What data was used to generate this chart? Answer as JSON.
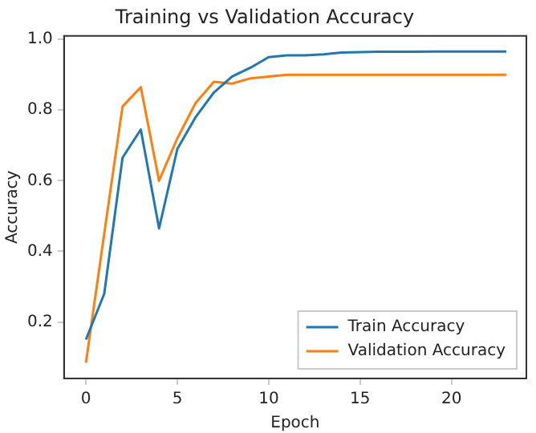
{
  "chart_data": {
    "type": "line",
    "title": "Training vs Validation Accuracy",
    "xlabel": "Epoch",
    "ylabel": "Accuracy",
    "x": [
      0,
      1,
      2,
      3,
      4,
      5,
      6,
      7,
      8,
      9,
      10,
      11,
      12,
      13,
      14,
      15,
      16,
      17,
      18,
      19,
      20,
      21,
      22,
      23
    ],
    "series": [
      {
        "name": "Train Accuracy",
        "color": "#1f77b4",
        "values": [
          0.15,
          0.28,
          0.665,
          0.745,
          0.465,
          0.69,
          0.78,
          0.85,
          0.895,
          0.92,
          0.95,
          0.955,
          0.955,
          0.958,
          0.963,
          0.964,
          0.965,
          0.965,
          0.965,
          0.966,
          0.966,
          0.966,
          0.966,
          0.966
        ]
      },
      {
        "name": "Validation Accuracy",
        "color": "#ff7f0e",
        "values": [
          0.085,
          0.45,
          0.81,
          0.865,
          0.6,
          0.72,
          0.82,
          0.88,
          0.875,
          0.89,
          0.895,
          0.9,
          0.9,
          0.9,
          0.9,
          0.9,
          0.9,
          0.9,
          0.9,
          0.9,
          0.9,
          0.9,
          0.9,
          0.9
        ]
      }
    ],
    "xlim": [
      -1.2,
      24.1
    ],
    "xticks": [
      0,
      5,
      10,
      15,
      20
    ],
    "ylim": [
      0.04,
      1.01
    ],
    "yticks": [
      0.2,
      0.4,
      0.6,
      0.8,
      {
        "value": 1.0,
        "label": "1.0"
      }
    ],
    "legend": "bottom right",
    "grid": false,
    "marker": "none",
    "line_style": "solid"
  }
}
